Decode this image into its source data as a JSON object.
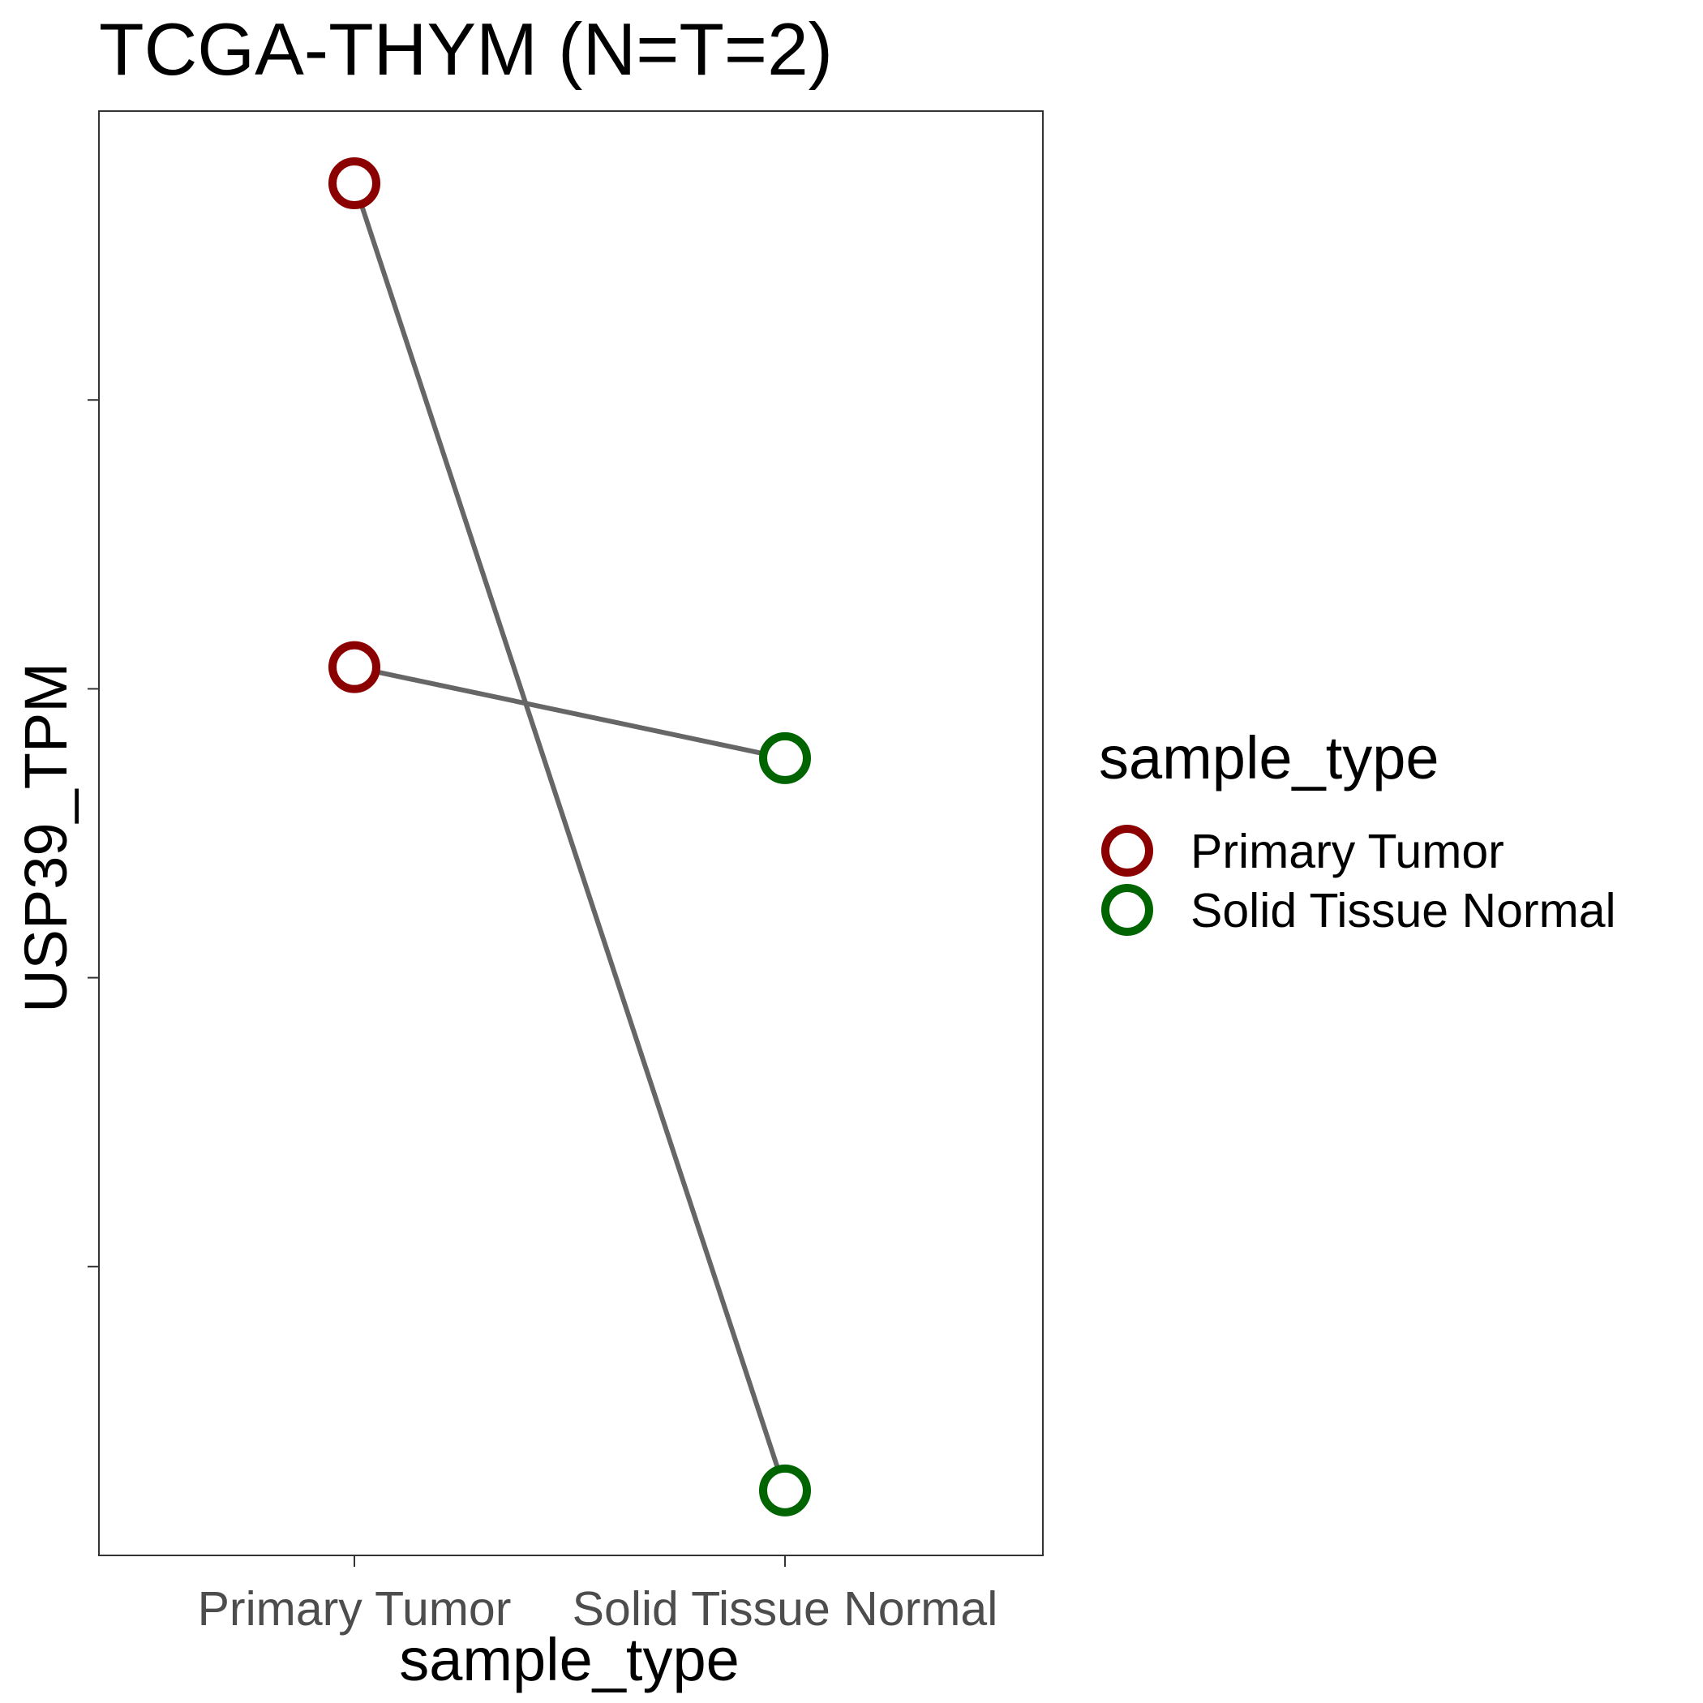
{
  "chart_data": {
    "type": "scatter",
    "title": "TCGA-THYM  (N=T=2)",
    "xlabel": "sample_type",
    "ylabel": "USP39_TPM",
    "categories": [
      "Primary Tumor",
      "Solid Tissue Normal"
    ],
    "y_tick_labels": [],
    "grid": false,
    "legend": {
      "title": "sample_type",
      "placement": "right",
      "entries": [
        {
          "label": "Primary Tumor",
          "color": "#8b0000"
        },
        {
          "label": "Solid Tissue Normal",
          "color": "#006400"
        }
      ]
    },
    "line_color": "#666666",
    "pairs": [
      {
        "Primary Tumor": 0.95,
        "Solid Tissue Normal": 0.045
      },
      {
        "Primary Tumor": 0.615,
        "Solid Tissue Normal": 0.552
      }
    ],
    "ylim": [
      0,
      1
    ]
  }
}
